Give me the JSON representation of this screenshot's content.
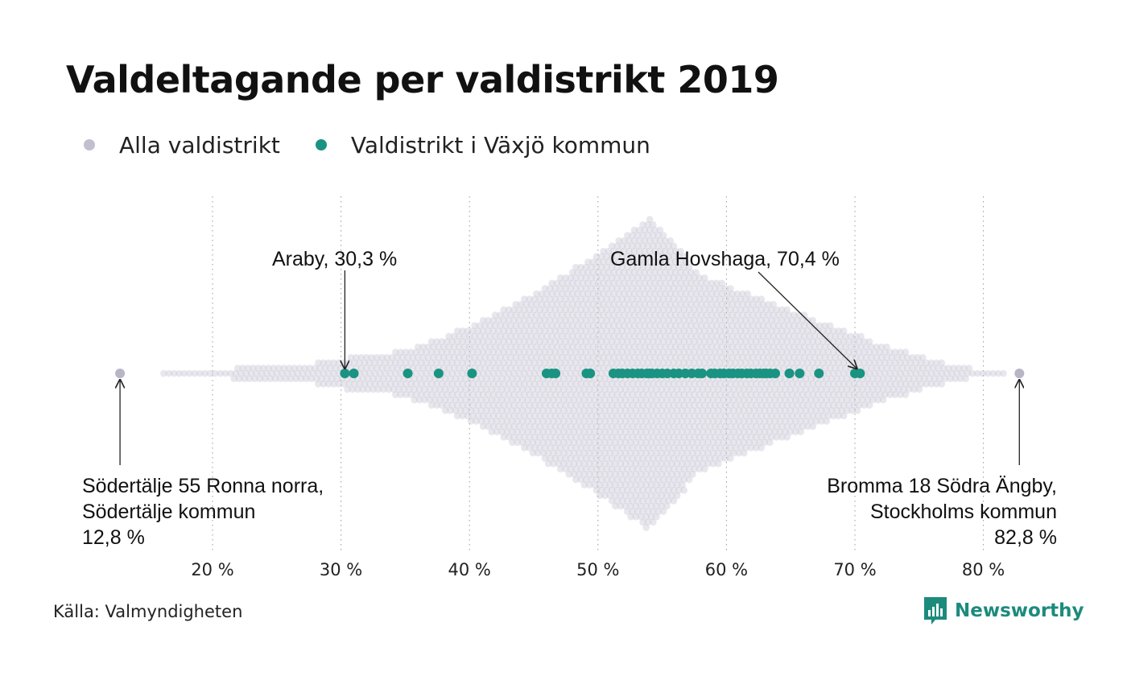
{
  "title": "Valdeltagande per valdistrikt 2019",
  "legend": [
    {
      "label": "Alla valdistrikt",
      "color": "#c2c0cf"
    },
    {
      "label": "Valdistrikt i Växjö kommun",
      "color": "#1a9382"
    }
  ],
  "source": "Källa: Valmyndigheten",
  "brand": {
    "name": "Newsworthy",
    "color": "#1c8b7c"
  },
  "chart_data": {
    "type": "scatter",
    "subtype": "beeswarm",
    "xlim": [
      12,
      84
    ],
    "x_ticks": [
      20,
      30,
      40,
      50,
      60,
      70,
      80
    ],
    "tick_labels": [
      "20 %",
      "30 %",
      "40 %",
      "50 %",
      "60 %",
      "70 %",
      "80 %"
    ],
    "grid": "vertical dotted",
    "series": [
      {
        "name": "Alla valdistrikt",
        "color": "#c2c0cf",
        "distribution": "dense swarm of all voting districts",
        "min": 12.8,
        "max": 82.8,
        "peak": 54
      },
      {
        "name": "Valdistrikt i Växjö kommun",
        "color": "#1a9382",
        "values": [
          30.3,
          31.0,
          35.2,
          37.6,
          40.2,
          46.0,
          46.4,
          46.7,
          49.1,
          49.4,
          51.2,
          51.6,
          51.9,
          52.3,
          52.7,
          53.1,
          53.4,
          53.8,
          54.0,
          54.2,
          54.6,
          55.0,
          55.4,
          55.9,
          56.3,
          56.8,
          57.3,
          57.8,
          58.1,
          58.8,
          59.1,
          59.5,
          59.8,
          60.2,
          60.5,
          60.9,
          61.2,
          61.6,
          61.9,
          62.3,
          62.6,
          62.9,
          63.1,
          63.4,
          63.8,
          64.9,
          65.7,
          67.2,
          70.0,
          70.4
        ]
      }
    ],
    "annotations": [
      {
        "lines": [
          "Araby, 30,3 %"
        ],
        "value": 30.3
      },
      {
        "lines": [
          "Gamla Hovshaga, 70,4 %"
        ],
        "value": 70.4
      },
      {
        "lines": [
          "Södertälje 55 Ronna norra,",
          "Södertälje kommun",
          "12,8 %"
        ],
        "value": 12.8
      },
      {
        "lines": [
          "Bromma 18 Södra Ängby,",
          "Stockholms kommun",
          "82,8 %"
        ],
        "value": 82.8
      }
    ]
  }
}
